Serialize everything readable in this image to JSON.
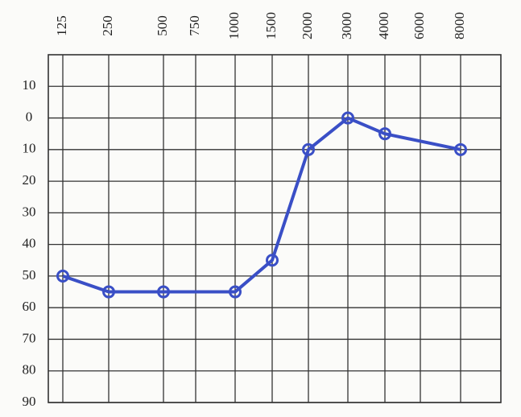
{
  "chart_data": {
    "type": "line",
    "xticks": [
      125,
      250,
      500,
      750,
      1000,
      1500,
      2000,
      3000,
      4000,
      6000,
      8000
    ],
    "x": [
      125,
      250,
      500,
      1000,
      1500,
      2000,
      3000,
      4000,
      8000
    ],
    "series": [
      {
        "color": "#3a4fc6",
        "values": [
          50,
          55,
          55,
          55,
          45,
          10,
          0,
          5,
          10
        ]
      }
    ],
    "ylim": [
      -20,
      90
    ],
    "yticks": [
      {
        "value": -10,
        "label": "10"
      },
      0,
      10,
      20,
      30,
      40,
      50,
      60,
      70,
      80,
      90
    ],
    "grid": true
  }
}
